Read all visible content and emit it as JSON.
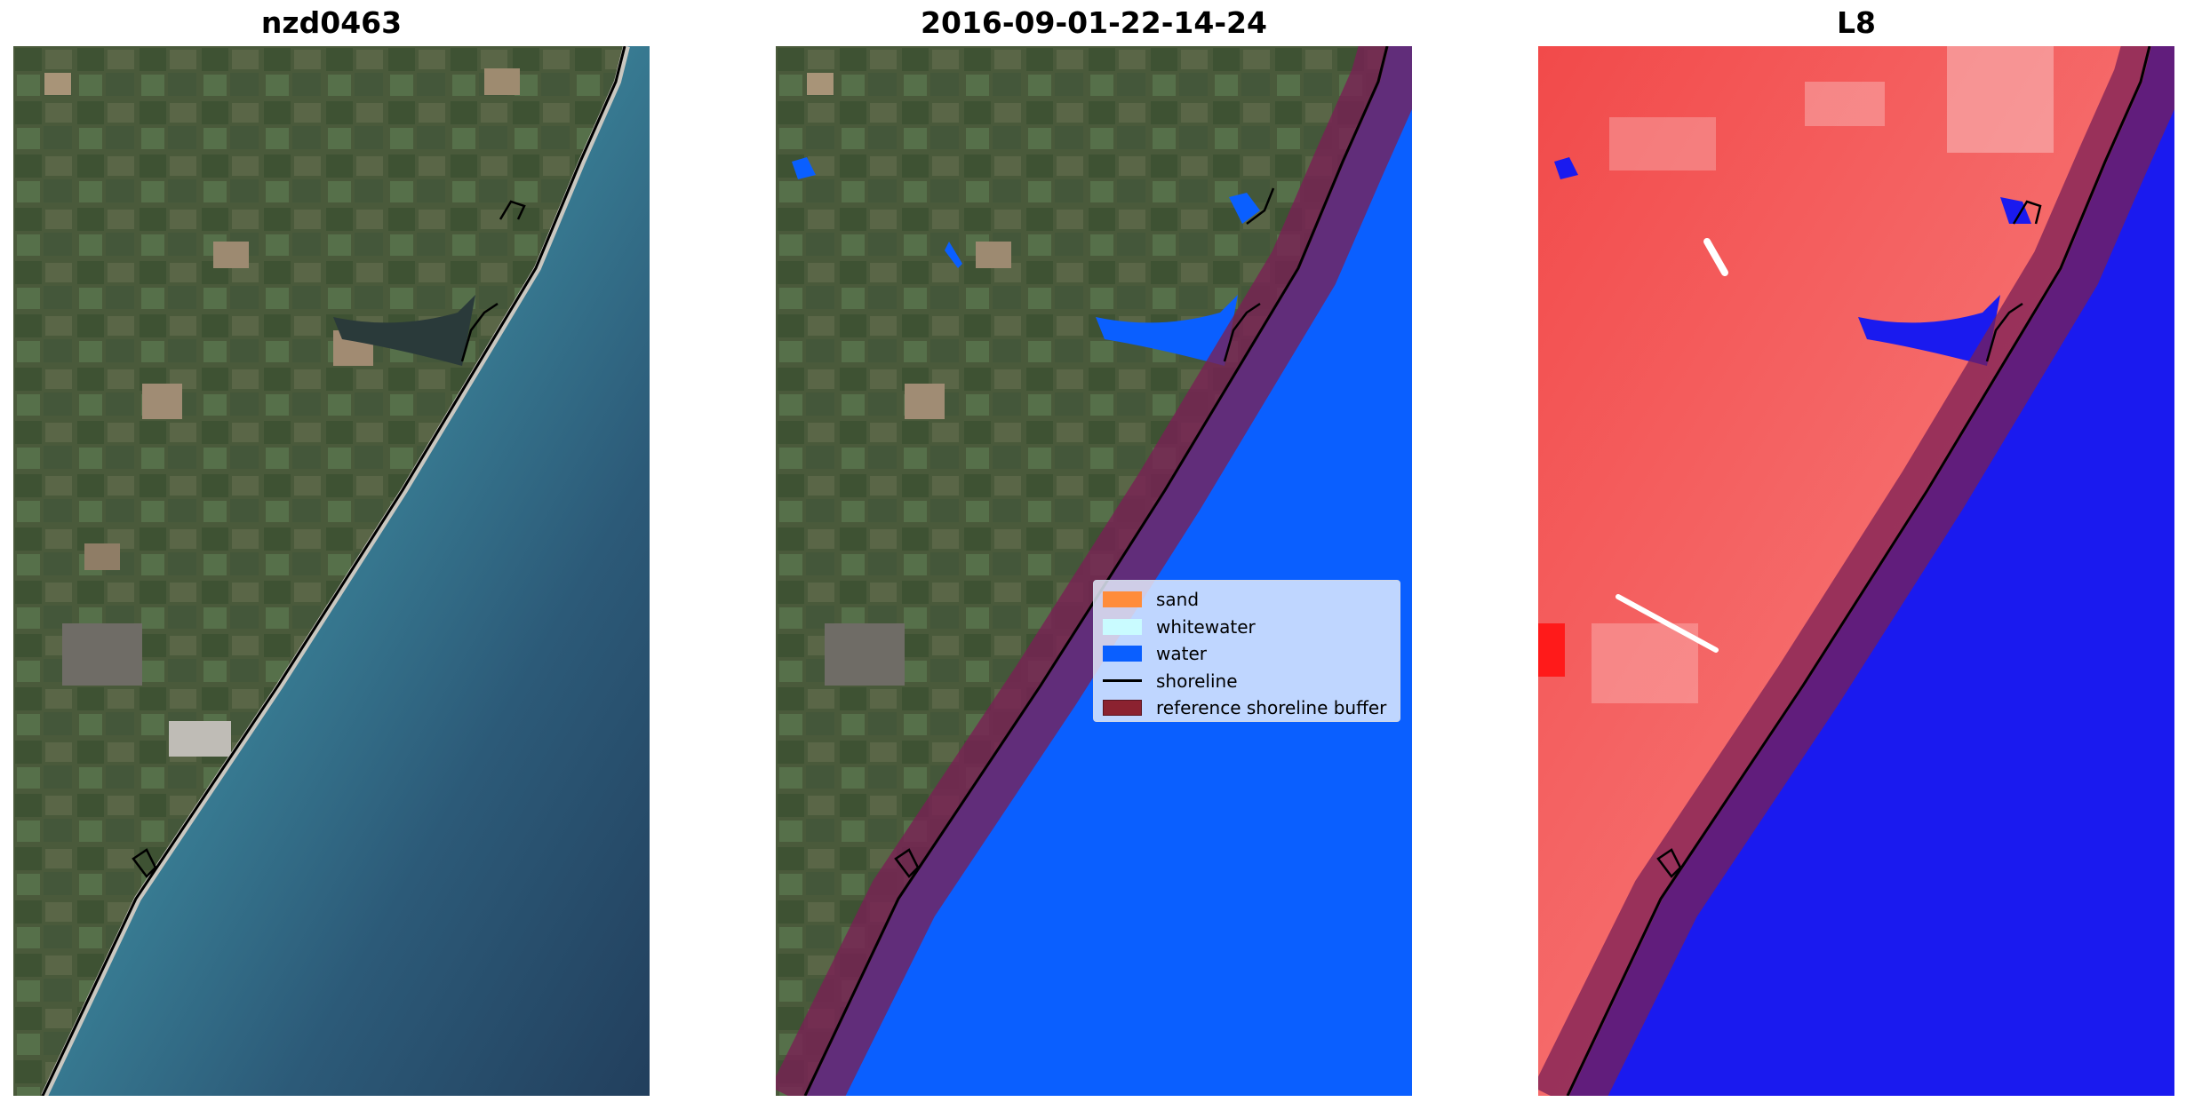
{
  "panels": [
    {
      "title": "nzd0463"
    },
    {
      "title": "2016-09-01-22-14-24"
    },
    {
      "title": "L8"
    }
  ],
  "legend": {
    "items": [
      {
        "label": "sand",
        "color": "#ff8c3a"
      },
      {
        "label": "whitewater",
        "color": "#c9fbff"
      },
      {
        "label": "water",
        "color": "#0a5fff"
      },
      {
        "label": "shoreline",
        "color": "#000000"
      },
      {
        "label": "reference shoreline buffer",
        "color": "#8b2230"
      }
    ]
  },
  "colors": {
    "land": "#4b5a3c",
    "sea_shallow": "#3f8fa2",
    "sea_deep": "#244664",
    "water_class": "#0a5fff",
    "buffer": "#7a1f55",
    "index_land": "#f25252",
    "index_water": "#1a1aef"
  }
}
